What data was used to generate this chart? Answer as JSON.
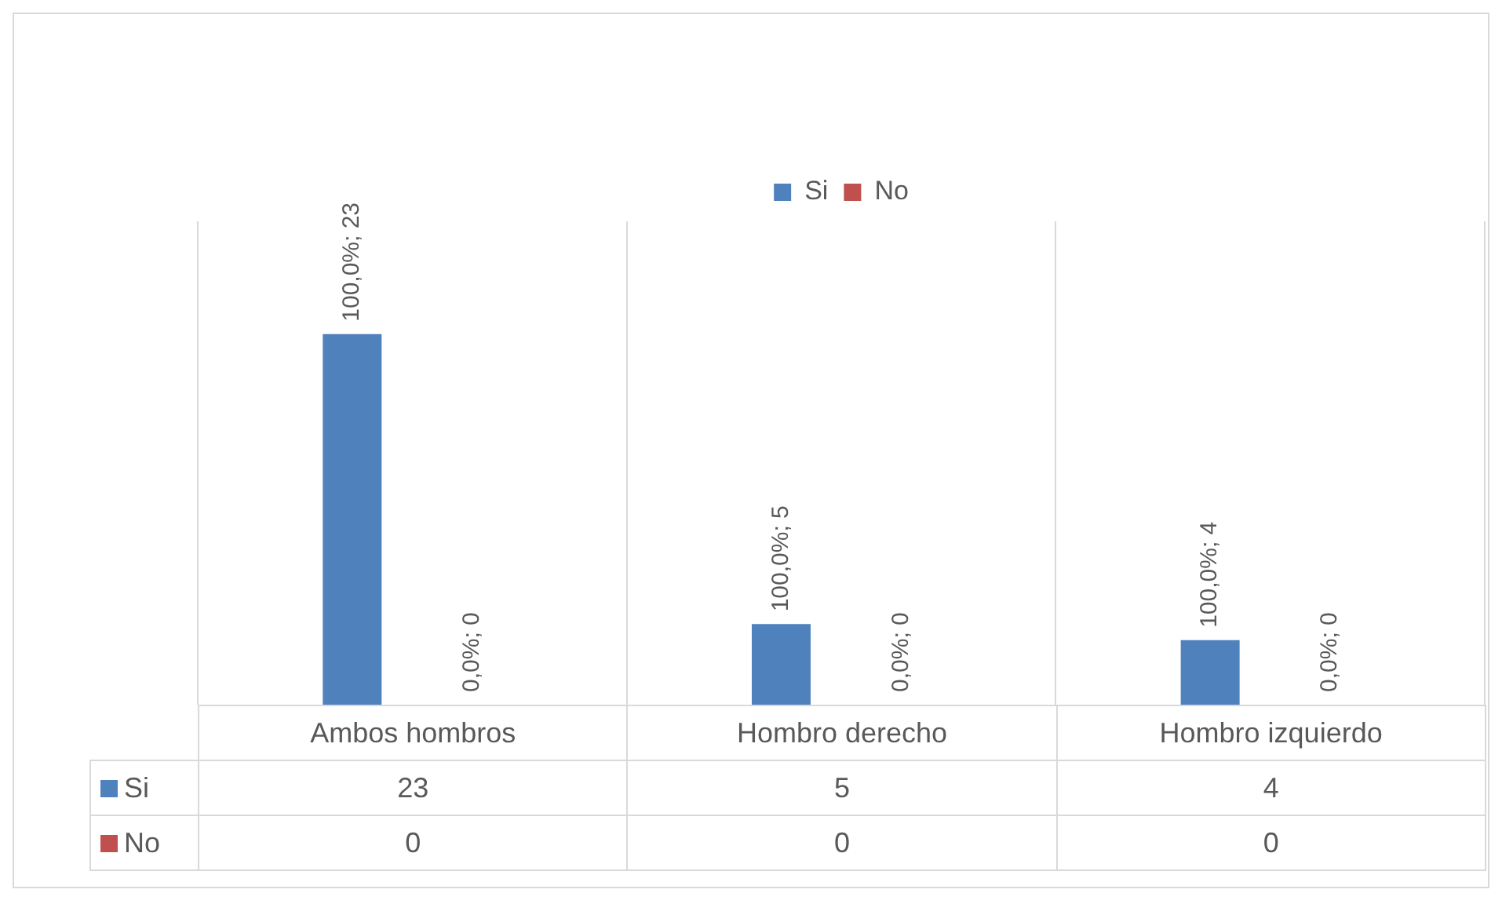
{
  "chart_data": {
    "type": "bar",
    "categories": [
      "Ambos hombros",
      "Hombro derecho",
      "Hombro izquierdo"
    ],
    "series": [
      {
        "name": "Si",
        "color": "#4f81bd",
        "values": [
          23,
          5,
          4
        ]
      },
      {
        "name": "No",
        "color": "#c0504d",
        "values": [
          0,
          0,
          0
        ]
      }
    ],
    "annotations": [
      "100,0%; 23",
      "0,0%; 0",
      "100,0%; 5",
      "0,0%; 0",
      "100,0%; 4",
      "0,0%; 0"
    ],
    "data_labels": true,
    "grid": "x",
    "legend": "top"
  }
}
